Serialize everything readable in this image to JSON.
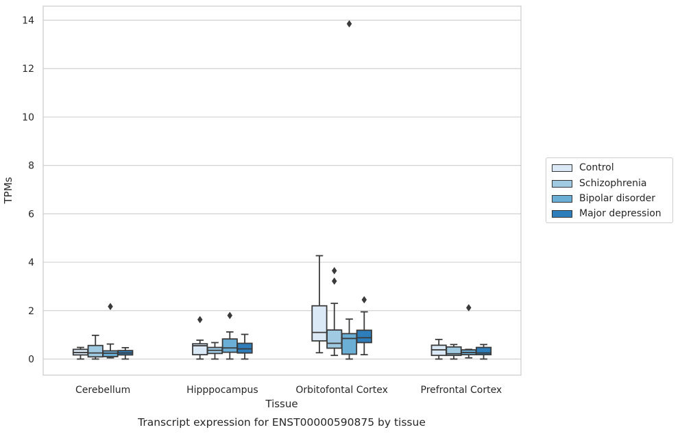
{
  "chart_data": {
    "type": "box",
    "title": "Transcript expression for ENST00000590875 by tissue",
    "xlabel": "Tissue",
    "ylabel": "TPMs",
    "ylim": [
      -0.65,
      14.6
    ],
    "yticks": [
      0,
      2,
      4,
      6,
      8,
      10,
      12,
      14
    ],
    "grid": "horizontal",
    "legend_position": "right",
    "categories": [
      "Cerebellum",
      "Hipppocampus",
      "Orbitofontal Cortex",
      "Prefrontal Cortex"
    ],
    "series": [
      {
        "name": "Control",
        "color": "#dbe9f6",
        "boxes": [
          {
            "whislo": 0.0,
            "q1": 0.17,
            "med": 0.27,
            "q3": 0.4,
            "whishi": 0.48,
            "fliers": []
          },
          {
            "whislo": 0.0,
            "q1": 0.18,
            "med": 0.55,
            "q3": 0.63,
            "whishi": 0.78,
            "fliers": [
              1.63
            ]
          },
          {
            "whislo": 0.26,
            "q1": 0.75,
            "med": 1.1,
            "q3": 2.2,
            "whishi": 4.27,
            "fliers": []
          },
          {
            "whislo": 0.0,
            "q1": 0.15,
            "med": 0.38,
            "q3": 0.57,
            "whishi": 0.81,
            "fliers": []
          }
        ]
      },
      {
        "name": "Schizophrenia",
        "color": "#a0cae1",
        "boxes": [
          {
            "whislo": 0.0,
            "q1": 0.09,
            "med": 0.25,
            "q3": 0.56,
            "whishi": 0.98,
            "fliers": []
          },
          {
            "whislo": 0.0,
            "q1": 0.23,
            "med": 0.36,
            "q3": 0.48,
            "whishi": 0.68,
            "fliers": []
          },
          {
            "whislo": 0.15,
            "q1": 0.45,
            "med": 0.65,
            "q3": 1.2,
            "whishi": 2.3,
            "fliers": [
              3.22,
              3.65
            ]
          },
          {
            "whislo": 0.0,
            "q1": 0.15,
            "med": 0.22,
            "q3": 0.5,
            "whishi": 0.6,
            "fliers": []
          }
        ]
      },
      {
        "name": "Bipolar disorder",
        "color": "#6baed6",
        "boxes": [
          {
            "whislo": 0.05,
            "q1": 0.1,
            "med": 0.24,
            "q3": 0.34,
            "whishi": 0.62,
            "fliers": [
              2.17
            ]
          },
          {
            "whislo": 0.0,
            "q1": 0.28,
            "med": 0.46,
            "q3": 0.83,
            "whishi": 1.12,
            "fliers": [
              1.8
            ]
          },
          {
            "whislo": 0.0,
            "q1": 0.2,
            "med": 0.85,
            "q3": 1.05,
            "whishi": 1.65,
            "fliers": [
              13.85
            ]
          },
          {
            "whislo": 0.05,
            "q1": 0.18,
            "med": 0.27,
            "q3": 0.38,
            "whishi": 0.4,
            "fliers": [
              2.12
            ]
          }
        ]
      },
      {
        "name": "Major depression",
        "color": "#2e7ebc",
        "boxes": [
          {
            "whislo": 0.0,
            "q1": 0.17,
            "med": 0.25,
            "q3": 0.35,
            "whishi": 0.47,
            "fliers": []
          },
          {
            "whislo": 0.0,
            "q1": 0.25,
            "med": 0.42,
            "q3": 0.65,
            "whishi": 1.02,
            "fliers": []
          },
          {
            "whislo": 0.18,
            "q1": 0.68,
            "med": 0.88,
            "q3": 1.19,
            "whishi": 1.95,
            "fliers": [
              2.45
            ]
          },
          {
            "whislo": 0.0,
            "q1": 0.18,
            "med": 0.25,
            "q3": 0.48,
            "whishi": 0.6,
            "fliers": []
          }
        ]
      }
    ]
  }
}
